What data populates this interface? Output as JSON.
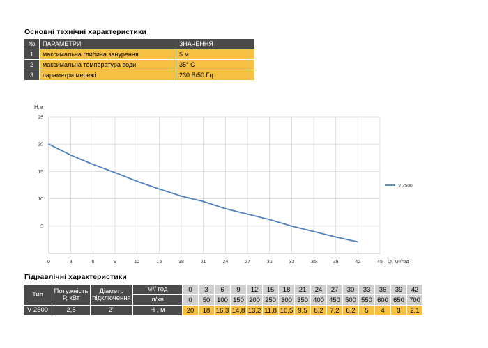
{
  "spec_title": "Основні технічні характеристики",
  "spec_table": {
    "headers": [
      "№",
      "ПАРАМЕТРИ",
      "ЗНАЧЕННЯ"
    ],
    "rows": [
      {
        "n": "1",
        "param": "максимальна глибина занурення",
        "value": "5 м"
      },
      {
        "n": "2",
        "param": "максимальна температура води",
        "value": "35° C"
      },
      {
        "n": "3",
        "param": "параметри мережі",
        "value": "230 В/50 Гц"
      }
    ]
  },
  "chart_data": {
    "type": "line",
    "ylabel": "Н,м",
    "xlabel": "Q, м³/год",
    "xlim": [
      0,
      45
    ],
    "ylim": [
      0,
      25
    ],
    "xticks": [
      0,
      3,
      6,
      9,
      12,
      15,
      18,
      21,
      24,
      27,
      30,
      33,
      36,
      39,
      42,
      45
    ],
    "yticks": [
      5,
      10,
      15,
      20,
      25
    ],
    "grid": true,
    "legend": "right",
    "series": [
      {
        "name": "V 2500",
        "color": "#4f81bd",
        "x": [
          0,
          3,
          6,
          9,
          12,
          15,
          18,
          21,
          24,
          27,
          30,
          33,
          36,
          39,
          42
        ],
        "y": [
          20,
          18,
          16.3,
          14.8,
          13.2,
          11.8,
          10.5,
          9.5,
          8.2,
          7.2,
          6.2,
          5,
          4,
          3,
          2.1
        ]
      }
    ]
  },
  "hyd_title": "Гідравлічні характеристики",
  "hyd_table": {
    "type_label": "Тип",
    "power_label": "Потужність Р, кВт",
    "diam_label": "Діаметр підключення",
    "m3_label": "м³/ год",
    "lmin_label": "л/хв",
    "h_label": "Н , м",
    "model": "V 2500",
    "power": "2,5",
    "diameter": "2\"",
    "m3": [
      "0",
      "3",
      "6",
      "9",
      "12",
      "15",
      "18",
      "21",
      "24",
      "27",
      "30",
      "33",
      "36",
      "39",
      "42"
    ],
    "lmin": [
      "0",
      "50",
      "100",
      "150",
      "200",
      "250",
      "300",
      "350",
      "400",
      "450",
      "500",
      "550",
      "600",
      "650",
      "700"
    ],
    "h": [
      "20",
      "18",
      "16,3",
      "14,8",
      "13,2",
      "11,8",
      "10,5",
      "9,5",
      "8,2",
      "7,2",
      "6,2",
      "5",
      "4",
      "3",
      "2,1"
    ]
  }
}
